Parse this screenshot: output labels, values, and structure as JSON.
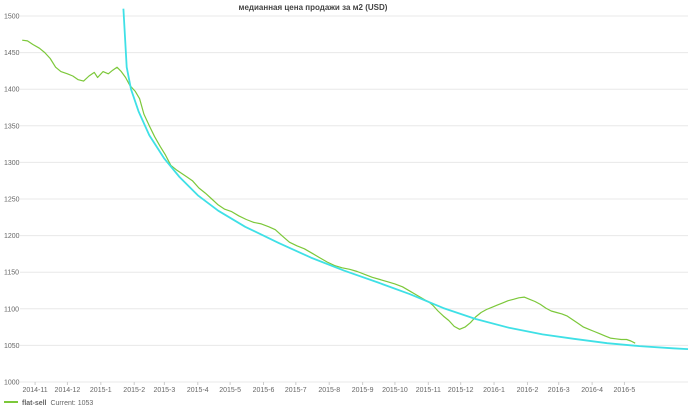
{
  "chart_data": {
    "type": "line",
    "title": "медианная цена продажи за м2 (USD)",
    "xlabel": "",
    "ylabel": "",
    "ylim": [
      1000,
      1500
    ],
    "yticks": [
      1000,
      1050,
      1100,
      1150,
      1200,
      1250,
      1300,
      1350,
      1400,
      1450,
      1500
    ],
    "xlim": [
      "2014-10-18",
      "2016-06-29"
    ],
    "xticks": [
      {
        "x": "2014-11-01",
        "label": "2014-11"
      },
      {
        "x": "2014-12-01",
        "label": "2014-12"
      },
      {
        "x": "2015-01-01",
        "label": "2015-1"
      },
      {
        "x": "2015-02-01",
        "label": "2015-2"
      },
      {
        "x": "2015-03-01",
        "label": "2015-3"
      },
      {
        "x": "2015-04-01",
        "label": "2015-4"
      },
      {
        "x": "2015-05-01",
        "label": "2015-5"
      },
      {
        "x": "2015-06-01",
        "label": "2015-6"
      },
      {
        "x": "2015-07-01",
        "label": "2015-7"
      },
      {
        "x": "2015-08-01",
        "label": "2015-8"
      },
      {
        "x": "2015-09-01",
        "label": "2015-9"
      },
      {
        "x": "2015-10-01",
        "label": "2015-10"
      },
      {
        "x": "2015-11-01",
        "label": "2015-11"
      },
      {
        "x": "2015-12-01",
        "label": "2015-12"
      },
      {
        "x": "2016-01-01",
        "label": "2016-1"
      },
      {
        "x": "2016-02-01",
        "label": "2016-2"
      },
      {
        "x": "2016-03-01",
        "label": "2016-3"
      },
      {
        "x": "2016-04-01",
        "label": "2016-4"
      },
      {
        "x": "2016-05-01",
        "label": "2016-5"
      }
    ],
    "grid": {
      "horizontal": true,
      "vertical": false
    },
    "legend": {
      "position": "bottom-left",
      "label": "flat-sell",
      "current_text": "Current: 1053"
    },
    "series": [
      {
        "name": "flat-sell",
        "color": "#7cc83a",
        "points": [
          [
            "2014-10-20",
            1467
          ],
          [
            "2014-10-25",
            1466
          ],
          [
            "2014-10-30",
            1461
          ],
          [
            "2014-11-05",
            1456
          ],
          [
            "2014-11-10",
            1450
          ],
          [
            "2014-11-15",
            1442
          ],
          [
            "2014-11-20",
            1430
          ],
          [
            "2014-11-25",
            1424
          ],
          [
            "2014-12-01",
            1421
          ],
          [
            "2014-12-06",
            1418
          ],
          [
            "2014-12-11",
            1413
          ],
          [
            "2014-12-16",
            1411
          ],
          [
            "2014-12-21",
            1418
          ],
          [
            "2014-12-26",
            1423
          ],
          [
            "2014-12-29",
            1416
          ],
          [
            "2015-01-03",
            1424
          ],
          [
            "2015-01-08",
            1421
          ],
          [
            "2015-01-12",
            1426
          ],
          [
            "2015-01-16",
            1430
          ],
          [
            "2015-01-20",
            1424
          ],
          [
            "2015-01-24",
            1416
          ],
          [
            "2015-01-28",
            1405
          ],
          [
            "2015-02-02",
            1397
          ],
          [
            "2015-02-06",
            1387
          ],
          [
            "2015-02-10",
            1366
          ],
          [
            "2015-02-15",
            1350
          ],
          [
            "2015-02-20",
            1335
          ],
          [
            "2015-02-25",
            1322
          ],
          [
            "2015-03-02",
            1310
          ],
          [
            "2015-03-07",
            1296
          ],
          [
            "2015-03-12",
            1290
          ],
          [
            "2015-03-17",
            1285
          ],
          [
            "2015-03-22",
            1280
          ],
          [
            "2015-03-27",
            1275
          ],
          [
            "2015-04-02",
            1265
          ],
          [
            "2015-04-08",
            1258
          ],
          [
            "2015-04-14",
            1250
          ],
          [
            "2015-04-20",
            1242
          ],
          [
            "2015-04-26",
            1236
          ],
          [
            "2015-05-02",
            1233
          ],
          [
            "2015-05-09",
            1227
          ],
          [
            "2015-05-16",
            1222
          ],
          [
            "2015-05-23",
            1218
          ],
          [
            "2015-05-30",
            1216
          ],
          [
            "2015-06-06",
            1212
          ],
          [
            "2015-06-12",
            1208
          ],
          [
            "2015-06-18",
            1200
          ],
          [
            "2015-06-25",
            1191
          ],
          [
            "2015-07-02",
            1186
          ],
          [
            "2015-07-09",
            1182
          ],
          [
            "2015-07-16",
            1176
          ],
          [
            "2015-07-23",
            1170
          ],
          [
            "2015-07-30",
            1164
          ],
          [
            "2015-08-06",
            1159
          ],
          [
            "2015-08-13",
            1156
          ],
          [
            "2015-08-20",
            1154
          ],
          [
            "2015-08-27",
            1151
          ],
          [
            "2015-09-03",
            1147
          ],
          [
            "2015-09-10",
            1143
          ],
          [
            "2015-09-17",
            1140
          ],
          [
            "2015-09-24",
            1137
          ],
          [
            "2015-10-01",
            1134
          ],
          [
            "2015-10-08",
            1130
          ],
          [
            "2015-10-15",
            1124
          ],
          [
            "2015-10-22",
            1118
          ],
          [
            "2015-10-29",
            1112
          ],
          [
            "2015-11-01",
            1110
          ],
          [
            "2015-11-05",
            1105
          ],
          [
            "2015-11-10",
            1097
          ],
          [
            "2015-11-15",
            1090
          ],
          [
            "2015-11-20",
            1084
          ],
          [
            "2015-11-25",
            1076
          ],
          [
            "2015-11-30",
            1072
          ],
          [
            "2015-12-05",
            1075
          ],
          [
            "2015-12-10",
            1081
          ],
          [
            "2015-12-15",
            1089
          ],
          [
            "2015-12-20",
            1095
          ],
          [
            "2015-12-25",
            1099
          ],
          [
            "2015-12-30",
            1102
          ],
          [
            "2016-01-04",
            1105
          ],
          [
            "2016-01-09",
            1108
          ],
          [
            "2016-01-14",
            1111
          ],
          [
            "2016-01-19",
            1113
          ],
          [
            "2016-01-24",
            1115
          ],
          [
            "2016-01-29",
            1116
          ],
          [
            "2016-02-03",
            1113
          ],
          [
            "2016-02-08",
            1110
          ],
          [
            "2016-02-13",
            1106
          ],
          [
            "2016-02-18",
            1101
          ],
          [
            "2016-02-23",
            1097
          ],
          [
            "2016-02-28",
            1095
          ],
          [
            "2016-03-04",
            1093
          ],
          [
            "2016-03-09",
            1090
          ],
          [
            "2016-03-14",
            1085
          ],
          [
            "2016-03-19",
            1080
          ],
          [
            "2016-03-24",
            1075
          ],
          [
            "2016-03-29",
            1072
          ],
          [
            "2016-04-03",
            1069
          ],
          [
            "2016-04-08",
            1066
          ],
          [
            "2016-04-13",
            1063
          ],
          [
            "2016-04-18",
            1060
          ],
          [
            "2016-04-23",
            1059
          ],
          [
            "2016-04-28",
            1058
          ],
          [
            "2016-05-03",
            1058
          ],
          [
            "2016-05-07",
            1056
          ],
          [
            "2016-05-11",
            1053
          ]
        ]
      },
      {
        "name": "",
        "color": "#3fe0e6",
        "points": [
          [
            "2015-01-22",
            1510
          ],
          [
            "2015-01-25",
            1430
          ],
          [
            "2015-01-29",
            1400
          ],
          [
            "2015-02-05",
            1370
          ],
          [
            "2015-02-15",
            1337
          ],
          [
            "2015-03-01",
            1305
          ],
          [
            "2015-03-15",
            1280
          ],
          [
            "2015-04-01",
            1255
          ],
          [
            "2015-04-20",
            1234
          ],
          [
            "2015-05-15",
            1212
          ],
          [
            "2015-06-15",
            1190
          ],
          [
            "2015-07-15",
            1170
          ],
          [
            "2015-08-15",
            1152
          ],
          [
            "2015-09-15",
            1136
          ],
          [
            "2015-10-15",
            1120
          ],
          [
            "2015-11-15",
            1101
          ],
          [
            "2015-12-15",
            1086
          ],
          [
            "2016-01-15",
            1074
          ],
          [
            "2016-02-15",
            1065
          ],
          [
            "2016-03-15",
            1059
          ],
          [
            "2016-04-15",
            1053
          ],
          [
            "2016-05-15",
            1049
          ],
          [
            "2016-06-15",
            1046
          ],
          [
            "2016-06-29",
            1045
          ]
        ]
      }
    ]
  }
}
